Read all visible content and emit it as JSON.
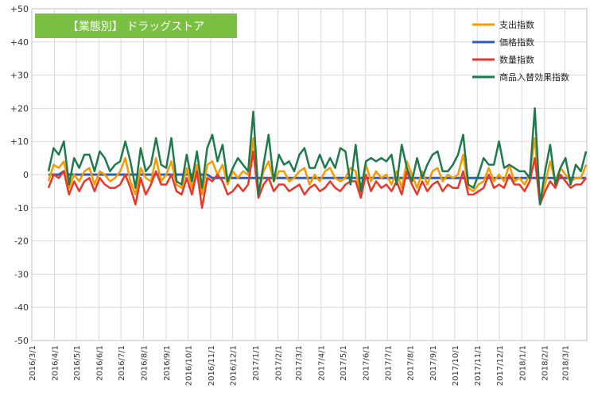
{
  "chart_data": {
    "type": "line",
    "title": "【業態別】 ドラッグストア",
    "title_box_color": "#7ac143",
    "grid": true,
    "legend_position": "top-right",
    "ylim": [
      -50,
      50
    ],
    "y_ticks": [
      "+50",
      "+40",
      "+30",
      "+20",
      "+10",
      "0",
      "-10",
      "-20",
      "-30",
      "-40",
      "-50"
    ],
    "x_start": "2016-03-01",
    "x_end": "2018-03-31",
    "x_tick_labels": [
      "2016/3/1",
      "2016/4/1",
      "2016/5/1",
      "2016/6/1",
      "2016/7/1",
      "2016/8/1",
      "2016/9/1",
      "2016/10/1",
      "2016/11/1",
      "2016/12/1",
      "2017/1/1",
      "2017/2/1",
      "2017/3/1",
      "2017/4/1",
      "2017/5/1",
      "2017/6/1",
      "2017/7/1",
      "2017/8/1",
      "2017/9/1",
      "2017/10/1",
      "2017/11/1",
      "2017/12/1",
      "2018/1/1",
      "2018/2/1",
      "2018/3/1"
    ],
    "series": [
      {
        "name": "支出指数",
        "color": "#f59b00",
        "values": [
          -2,
          3,
          2,
          4,
          -4,
          0,
          -2,
          1,
          2,
          -3,
          1,
          0,
          -2,
          -1,
          1,
          5,
          -2,
          -6,
          2,
          -1,
          -2,
          5,
          -2,
          0,
          4,
          -3,
          -4,
          2,
          -4,
          3,
          -6,
          3,
          4,
          0,
          3,
          -3,
          1,
          -1,
          1,
          0,
          11,
          -6,
          1,
          4,
          -2,
          1,
          1,
          -2,
          -1,
          1,
          2,
          -3,
          0,
          -2,
          1,
          2,
          -1,
          -2,
          -1,
          2,
          1,
          -6,
          3,
          -2,
          1,
          -1,
          0,
          -3,
          1,
          -4,
          4,
          0,
          -4,
          1,
          -3,
          1,
          2,
          -2,
          0,
          -1,
          0,
          6,
          -4,
          -5,
          -3,
          -2,
          2,
          -2,
          0,
          -2,
          3,
          -2,
          -1,
          -3,
          0,
          11,
          -8,
          -3,
          4,
          -2,
          2,
          0,
          -2,
          -1,
          -1,
          3
        ]
      },
      {
        "name": "価格指数",
        "color": "#2e5fb3",
        "values": [
          0,
          0,
          0,
          1,
          0,
          0,
          0,
          0,
          0,
          0,
          0,
          0,
          0,
          0,
          0,
          0,
          0,
          0,
          0,
          0,
          0,
          0,
          0,
          0,
          0,
          0,
          0,
          0,
          0,
          0,
          0,
          0,
          -1,
          -1,
          -1,
          -1,
          -1,
          -1,
          -1,
          -1,
          -1,
          -1,
          -1,
          -1,
          -1,
          -1,
          -1,
          -1,
          -1,
          -1,
          -1,
          -1,
          -1,
          -1,
          -1,
          -1,
          -1,
          -1,
          -1,
          -1,
          -1,
          -1,
          -1,
          -1,
          -1,
          -1,
          -1,
          -1,
          -1,
          -1,
          -1,
          -1,
          -1,
          -1,
          -1,
          -1,
          -1,
          -1,
          -1,
          -1,
          -1,
          -1,
          -1,
          -1,
          -1,
          -1,
          -1,
          -1,
          -1,
          -1,
          -1,
          -1,
          -1,
          -1,
          -1,
          -1,
          -1,
          -1,
          -1,
          -1,
          -1,
          -1,
          -1,
          -1,
          -1,
          -1
        ]
      },
      {
        "name": "数量指数",
        "color": "#e8382a",
        "values": [
          -4,
          0,
          -1,
          1,
          -6,
          -2,
          -5,
          -2,
          -1,
          -5,
          -1,
          -3,
          -4,
          -4,
          -3,
          0,
          -4,
          -9,
          -1,
          -6,
          -3,
          1,
          -3,
          -3,
          0,
          -5,
          -6,
          -1,
          -6,
          1,
          -10,
          -1,
          -2,
          0,
          -2,
          -6,
          -5,
          -3,
          -5,
          -3,
          7,
          -7,
          -3,
          -1,
          -5,
          -3,
          -3,
          -5,
          -4,
          -3,
          -6,
          -4,
          -3,
          -5,
          -4,
          -2,
          -4,
          -5,
          -3,
          -2,
          -2,
          -7,
          0,
          -5,
          -2,
          -4,
          -3,
          -5,
          -2,
          -6,
          1,
          -3,
          -6,
          -2,
          -5,
          -3,
          -2,
          -5,
          -3,
          -4,
          -4,
          1,
          -6,
          -6,
          -5,
          -4,
          0,
          -4,
          -3,
          -4,
          0,
          -3,
          -3,
          -5,
          -2,
          5,
          -9,
          -5,
          -2,
          -4,
          0,
          -2,
          -4,
          -3,
          -3,
          -1
        ]
      },
      {
        "name": "商品入替効果指数",
        "color": "#1f7a4d",
        "values": [
          1,
          8,
          6,
          10,
          -3,
          5,
          2,
          6,
          6,
          1,
          7,
          5,
          1,
          3,
          4,
          10,
          4,
          -4,
          8,
          1,
          3,
          11,
          3,
          2,
          11,
          -2,
          -3,
          6,
          -2,
          7,
          -4,
          8,
          12,
          4,
          9,
          -2,
          2,
          5,
          3,
          1,
          19,
          -6,
          3,
          12,
          -2,
          6,
          3,
          4,
          1,
          6,
          8,
          2,
          2,
          6,
          2,
          5,
          2,
          8,
          7,
          -3,
          9,
          -5,
          4,
          5,
          4,
          5,
          4,
          6,
          -3,
          9,
          2,
          -2,
          5,
          -1,
          3,
          6,
          7,
          1,
          1,
          3,
          6,
          12,
          -3,
          -4,
          0,
          5,
          3,
          3,
          10,
          2,
          3,
          2,
          1,
          1,
          -1,
          20,
          -9,
          1,
          9,
          -3,
          2,
          5,
          -3,
          3,
          1,
          7
        ]
      }
    ]
  }
}
